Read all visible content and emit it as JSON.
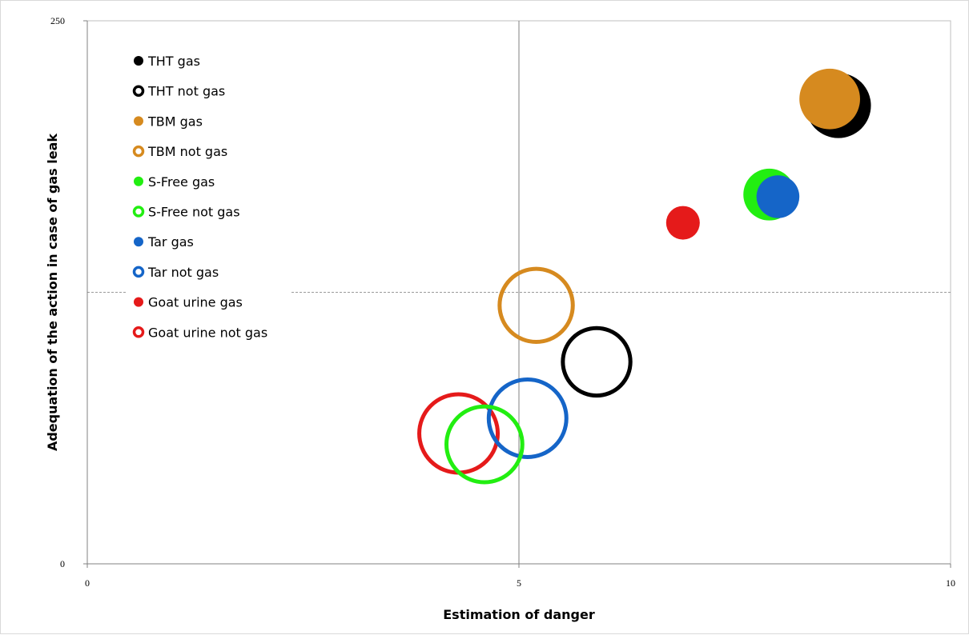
{
  "chart_data": {
    "type": "scatter",
    "subtype": "bubble",
    "xlabel": "Estimation of danger",
    "ylabel": "Adequation of the action in case of gas leak",
    "xlim": [
      0,
      10
    ],
    "ylim": [
      0,
      250
    ],
    "x_ticks": [
      "0",
      "5",
      "10"
    ],
    "y_ticks": [
      "0",
      "250"
    ],
    "reference_lines": {
      "x": 5,
      "y": 125
    },
    "grid": false,
    "legend_position": "top-left",
    "series": [
      {
        "name": "THT gas",
        "color": "#000000",
        "filled": true,
        "points": [
          {
            "x": 8.7,
            "y": 211,
            "size": 30
          }
        ]
      },
      {
        "name": "THT not gas",
        "color": "#000000",
        "filled": false,
        "points": [
          {
            "x": 5.9,
            "y": 93,
            "size": 37
          }
        ]
      },
      {
        "name": "TBM gas",
        "color": "#d68a1f",
        "filled": true,
        "points": [
          {
            "x": 8.6,
            "y": 214,
            "size": 26
          }
        ]
      },
      {
        "name": "TBM not gas",
        "color": "#d68a1f",
        "filled": false,
        "points": [
          {
            "x": 5.2,
            "y": 119,
            "size": 43
          }
        ]
      },
      {
        "name": "S-Free gas",
        "color": "#22ee11",
        "filled": true,
        "points": [
          {
            "x": 7.9,
            "y": 170,
            "size": 19
          }
        ]
      },
      {
        "name": "S-Free not gas",
        "color": "#22ee11",
        "filled": false,
        "points": [
          {
            "x": 4.6,
            "y": 55,
            "size": 46
          }
        ]
      },
      {
        "name": "Tar gas",
        "color": "#1565c8",
        "filled": true,
        "points": [
          {
            "x": 8.0,
            "y": 169,
            "size": 13
          }
        ]
      },
      {
        "name": "Tar not gas",
        "color": "#1565c8",
        "filled": false,
        "points": [
          {
            "x": 5.1,
            "y": 67,
            "size": 48
          }
        ]
      },
      {
        "name": "Goat urine gas",
        "color": "#e51a1a",
        "filled": true,
        "points": [
          {
            "x": 6.9,
            "y": 157,
            "size": 8
          }
        ]
      },
      {
        "name": "Goat urine not gas",
        "color": "#e51a1a",
        "filled": false,
        "points": [
          {
            "x": 4.3,
            "y": 60,
            "size": 49
          }
        ]
      }
    ]
  }
}
